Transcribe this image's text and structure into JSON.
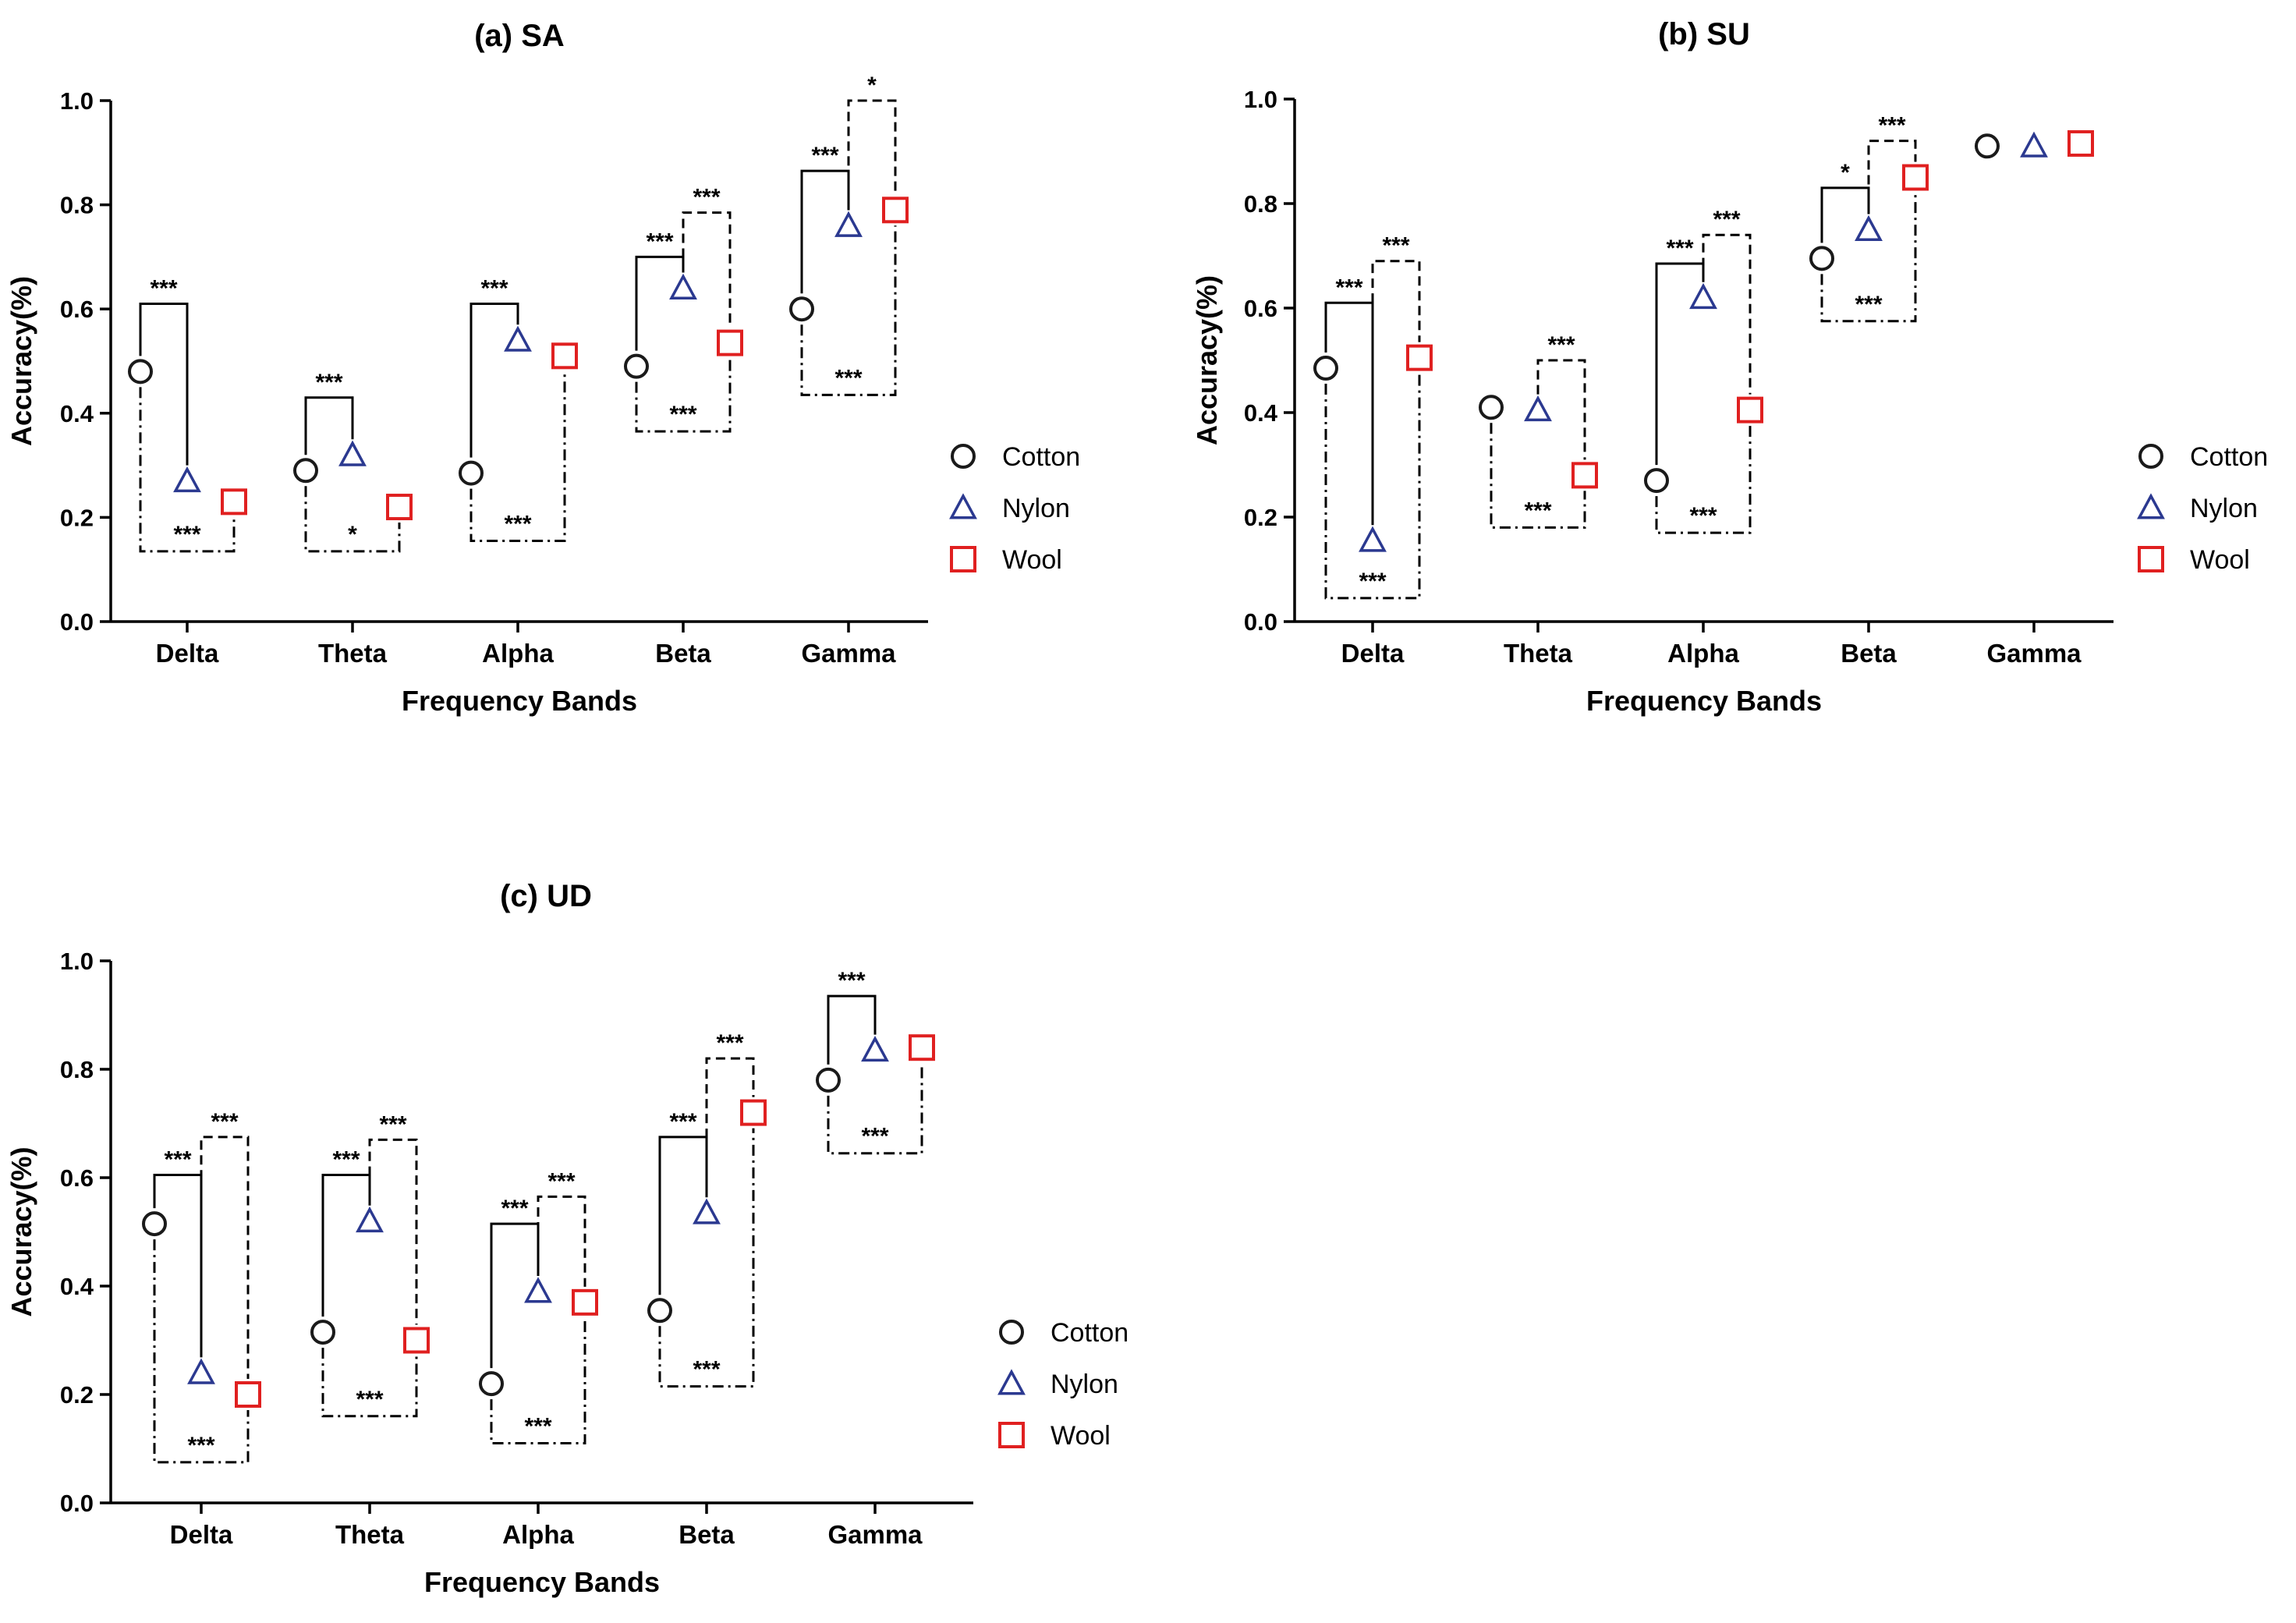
{
  "chart_data": [
    {
      "id": "a",
      "type": "scatter",
      "title": "(a) SA",
      "xlabel": "Frequency Bands",
      "ylabel": "Accuracy(%)",
      "categories": [
        "Delta",
        "Theta",
        "Alpha",
        "Beta",
        "Gamma"
      ],
      "ylim": [
        0,
        1
      ],
      "yticks": [
        "0.0",
        "0.2",
        "0.4",
        "0.6",
        "0.8",
        "1.0"
      ],
      "grid": false,
      "legend_position": "right",
      "series": [
        {
          "name": "Cotton",
          "marker": "circle",
          "color": "#1a1a1a",
          "values": [
            0.48,
            0.29,
            0.285,
            0.49,
            0.6
          ]
        },
        {
          "name": "Nylon",
          "marker": "triangle",
          "color": "#2b3990",
          "values": [
            0.27,
            0.32,
            0.54,
            0.64,
            0.76
          ]
        },
        {
          "name": "Wool",
          "marker": "square",
          "color": "#e02020",
          "values": [
            0.23,
            0.22,
            0.51,
            0.535,
            0.79
          ]
        }
      ],
      "comparisons": [
        {
          "category": "Delta",
          "pair": "Cotton-Nylon",
          "style": "solid",
          "level": 0.61,
          "label": "***"
        },
        {
          "category": "Delta",
          "pair": "Cotton-Wool",
          "style": "dashdot",
          "level": 0.135,
          "label": "***"
        },
        {
          "category": "Theta",
          "pair": "Cotton-Nylon",
          "style": "solid",
          "level": 0.43,
          "label": "***"
        },
        {
          "category": "Theta",
          "pair": "Cotton-Wool",
          "style": "dashdot",
          "level": 0.135,
          "label": "*"
        },
        {
          "category": "Alpha",
          "pair": "Cotton-Nylon",
          "style": "solid",
          "level": 0.61,
          "label": "***"
        },
        {
          "category": "Alpha",
          "pair": "Cotton-Wool",
          "style": "dashdot",
          "level": 0.155,
          "label": "***"
        },
        {
          "category": "Beta",
          "pair": "Cotton-Nylon",
          "style": "solid",
          "level": 0.7,
          "label": "***"
        },
        {
          "category": "Beta",
          "pair": "Nylon-Wool",
          "style": "dashed",
          "level": 0.785,
          "label": "***"
        },
        {
          "category": "Beta",
          "pair": "Cotton-Wool",
          "style": "dashdot",
          "level": 0.365,
          "label": "***"
        },
        {
          "category": "Gamma",
          "pair": "Cotton-Nylon",
          "style": "solid",
          "level": 0.865,
          "label": "***"
        },
        {
          "category": "Gamma",
          "pair": "Nylon-Wool",
          "style": "dashed",
          "level": 1.0,
          "label": "*"
        },
        {
          "category": "Gamma",
          "pair": "Cotton-Wool",
          "style": "dashdot",
          "level": 0.435,
          "label": "***"
        }
      ]
    },
    {
      "id": "b",
      "type": "scatter",
      "title": "(b) SU",
      "xlabel": "Frequency Bands",
      "ylabel": "Accuracy(%)",
      "categories": [
        "Delta",
        "Theta",
        "Alpha",
        "Beta",
        "Gamma"
      ],
      "ylim": [
        0,
        1
      ],
      "yticks": [
        "0.0",
        "0.2",
        "0.4",
        "0.6",
        "0.8",
        "1.0"
      ],
      "grid": false,
      "legend_position": "right",
      "series": [
        {
          "name": "Cotton",
          "marker": "circle",
          "color": "#1a1a1a",
          "values": [
            0.485,
            0.41,
            0.27,
            0.695,
            0.91
          ]
        },
        {
          "name": "Nylon",
          "marker": "triangle",
          "color": "#2b3990",
          "values": [
            0.155,
            0.405,
            0.62,
            0.75,
            0.91
          ]
        },
        {
          "name": "Wool",
          "marker": "square",
          "color": "#e02020",
          "values": [
            0.505,
            0.28,
            0.405,
            0.85,
            0.915
          ]
        }
      ],
      "comparisons": [
        {
          "category": "Delta",
          "pair": "Cotton-Nylon",
          "style": "solid",
          "level": 0.61,
          "label": "***"
        },
        {
          "category": "Delta",
          "pair": "Nylon-Wool",
          "style": "dashed",
          "level": 0.69,
          "label": "***"
        },
        {
          "category": "Delta",
          "pair": "Cotton-Wool",
          "style": "dashdot",
          "level": 0.045,
          "label": "***"
        },
        {
          "category": "Theta",
          "pair": "Nylon-Wool",
          "style": "dashed",
          "level": 0.5,
          "label": "***"
        },
        {
          "category": "Theta",
          "pair": "Cotton-Wool",
          "style": "dashdot",
          "level": 0.18,
          "label": "***"
        },
        {
          "category": "Alpha",
          "pair": "Cotton-Nylon",
          "style": "solid",
          "level": 0.685,
          "label": "***"
        },
        {
          "category": "Alpha",
          "pair": "Nylon-Wool",
          "style": "dashed",
          "level": 0.74,
          "label": "***"
        },
        {
          "category": "Alpha",
          "pair": "Cotton-Wool",
          "style": "dashdot",
          "level": 0.17,
          "label": "***"
        },
        {
          "category": "Beta",
          "pair": "Cotton-Nylon",
          "style": "solid",
          "level": 0.83,
          "label": "*"
        },
        {
          "category": "Beta",
          "pair": "Nylon-Wool",
          "style": "dashed",
          "level": 0.92,
          "label": "***"
        },
        {
          "category": "Beta",
          "pair": "Cotton-Wool",
          "style": "dashdot",
          "level": 0.575,
          "label": "***"
        }
      ]
    },
    {
      "id": "c",
      "type": "scatter",
      "title": "(c) UD",
      "xlabel": "Frequency Bands",
      "ylabel": "Accuracy(%)",
      "categories": [
        "Delta",
        "Theta",
        "Alpha",
        "Beta",
        "Gamma"
      ],
      "ylim": [
        0,
        1
      ],
      "yticks": [
        "0.0",
        "0.2",
        "0.4",
        "0.6",
        "0.8",
        "1.0"
      ],
      "grid": false,
      "legend_position": "right",
      "series": [
        {
          "name": "Cotton",
          "marker": "circle",
          "color": "#1a1a1a",
          "values": [
            0.515,
            0.315,
            0.22,
            0.355,
            0.78
          ]
        },
        {
          "name": "Nylon",
          "marker": "triangle",
          "color": "#2b3990",
          "values": [
            0.24,
            0.52,
            0.39,
            0.535,
            0.835
          ]
        },
        {
          "name": "Wool",
          "marker": "square",
          "color": "#e02020",
          "values": [
            0.2,
            0.3,
            0.37,
            0.72,
            0.84
          ]
        }
      ],
      "comparisons": [
        {
          "category": "Delta",
          "pair": "Cotton-Nylon",
          "style": "solid",
          "level": 0.605,
          "label": "***"
        },
        {
          "category": "Delta",
          "pair": "Nylon-Wool",
          "style": "dashed",
          "level": 0.675,
          "label": "***"
        },
        {
          "category": "Delta",
          "pair": "Cotton-Wool",
          "style": "dashdot",
          "level": 0.075,
          "label": "***"
        },
        {
          "category": "Theta",
          "pair": "Cotton-Nylon",
          "style": "solid",
          "level": 0.605,
          "label": "***"
        },
        {
          "category": "Theta",
          "pair": "Nylon-Wool",
          "style": "dashed",
          "level": 0.67,
          "label": "***"
        },
        {
          "category": "Theta",
          "pair": "Cotton-Wool",
          "style": "dashdot",
          "level": 0.16,
          "label": "***"
        },
        {
          "category": "Alpha",
          "pair": "Cotton-Nylon",
          "style": "solid",
          "level": 0.515,
          "label": "***"
        },
        {
          "category": "Alpha",
          "pair": "Nylon-Wool",
          "style": "dashed",
          "level": 0.565,
          "label": "***"
        },
        {
          "category": "Alpha",
          "pair": "Cotton-Wool",
          "style": "dashdot",
          "level": 0.11,
          "label": "***"
        },
        {
          "category": "Beta",
          "pair": "Cotton-Nylon",
          "style": "solid",
          "level": 0.675,
          "label": "***"
        },
        {
          "category": "Beta",
          "pair": "Nylon-Wool",
          "style": "dashed",
          "level": 0.82,
          "label": "***"
        },
        {
          "category": "Beta",
          "pair": "Cotton-Wool",
          "style": "dashdot",
          "level": 0.215,
          "label": "***"
        },
        {
          "category": "Gamma",
          "pair": "Cotton-Nylon",
          "style": "solid",
          "level": 0.935,
          "label": "***"
        },
        {
          "category": "Gamma",
          "pair": "Cotton-Wool",
          "style": "dashdot",
          "level": 0.645,
          "label": "***"
        }
      ]
    }
  ]
}
